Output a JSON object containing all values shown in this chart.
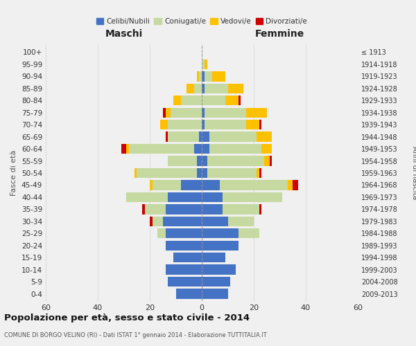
{
  "age_groups": [
    "0-4",
    "5-9",
    "10-14",
    "15-19",
    "20-24",
    "25-29",
    "30-34",
    "35-39",
    "40-44",
    "45-49",
    "50-54",
    "55-59",
    "60-64",
    "65-69",
    "70-74",
    "75-79",
    "80-84",
    "85-89",
    "90-94",
    "95-99",
    "100+"
  ],
  "birth_years": [
    "2009-2013",
    "2004-2008",
    "1999-2003",
    "1994-1998",
    "1989-1993",
    "1984-1988",
    "1979-1983",
    "1974-1978",
    "1969-1973",
    "1964-1968",
    "1959-1963",
    "1954-1958",
    "1949-1953",
    "1944-1948",
    "1939-1943",
    "1934-1938",
    "1929-1933",
    "1924-1928",
    "1919-1923",
    "1914-1918",
    "≤ 1913"
  ],
  "colors": {
    "celibe": "#4472c4",
    "coniugato": "#c6d9a0",
    "vedovo": "#ffc000",
    "divorziato": "#cc0000"
  },
  "maschi": {
    "celibe": [
      10,
      13,
      14,
      11,
      14,
      14,
      15,
      14,
      13,
      8,
      2,
      2,
      3,
      1,
      0,
      0,
      0,
      0,
      0,
      0,
      0
    ],
    "coniugato": [
      0,
      0,
      0,
      0,
      0,
      3,
      4,
      8,
      16,
      11,
      23,
      11,
      25,
      12,
      13,
      12,
      8,
      3,
      1,
      0,
      0
    ],
    "vedovo": [
      0,
      0,
      0,
      0,
      0,
      0,
      0,
      0,
      0,
      1,
      1,
      0,
      1,
      0,
      3,
      2,
      3,
      3,
      1,
      0,
      0
    ],
    "divorziato": [
      0,
      0,
      0,
      0,
      0,
      0,
      1,
      1,
      0,
      0,
      0,
      0,
      2,
      1,
      0,
      1,
      0,
      0,
      0,
      0,
      0
    ]
  },
  "femmine": {
    "celibe": [
      10,
      11,
      13,
      9,
      14,
      14,
      10,
      8,
      8,
      7,
      2,
      2,
      3,
      3,
      1,
      1,
      0,
      1,
      1,
      0,
      0
    ],
    "coniugato": [
      0,
      0,
      0,
      0,
      0,
      8,
      10,
      14,
      23,
      26,
      19,
      22,
      20,
      18,
      16,
      16,
      9,
      9,
      3,
      1,
      0
    ],
    "vedovo": [
      0,
      0,
      0,
      0,
      0,
      0,
      0,
      0,
      0,
      2,
      1,
      2,
      4,
      6,
      5,
      8,
      5,
      6,
      5,
      1,
      0
    ],
    "divorziato": [
      0,
      0,
      0,
      0,
      0,
      0,
      0,
      1,
      0,
      2,
      1,
      1,
      0,
      0,
      1,
      0,
      1,
      0,
      0,
      0,
      0
    ]
  },
  "title": "Popolazione per età, sesso e stato civile - 2014",
  "subtitle": "COMUNE DI BORGO VELINO (RI) - Dati ISTAT 1° gennaio 2014 - Elaborazione TUTTITALIA.IT",
  "xlabel_left": "Maschi",
  "xlabel_right": "Femmine",
  "ylabel_left": "Fasce di età",
  "ylabel_right": "Anni di nascita",
  "xlim": 60,
  "background_color": "#f0f0f0"
}
